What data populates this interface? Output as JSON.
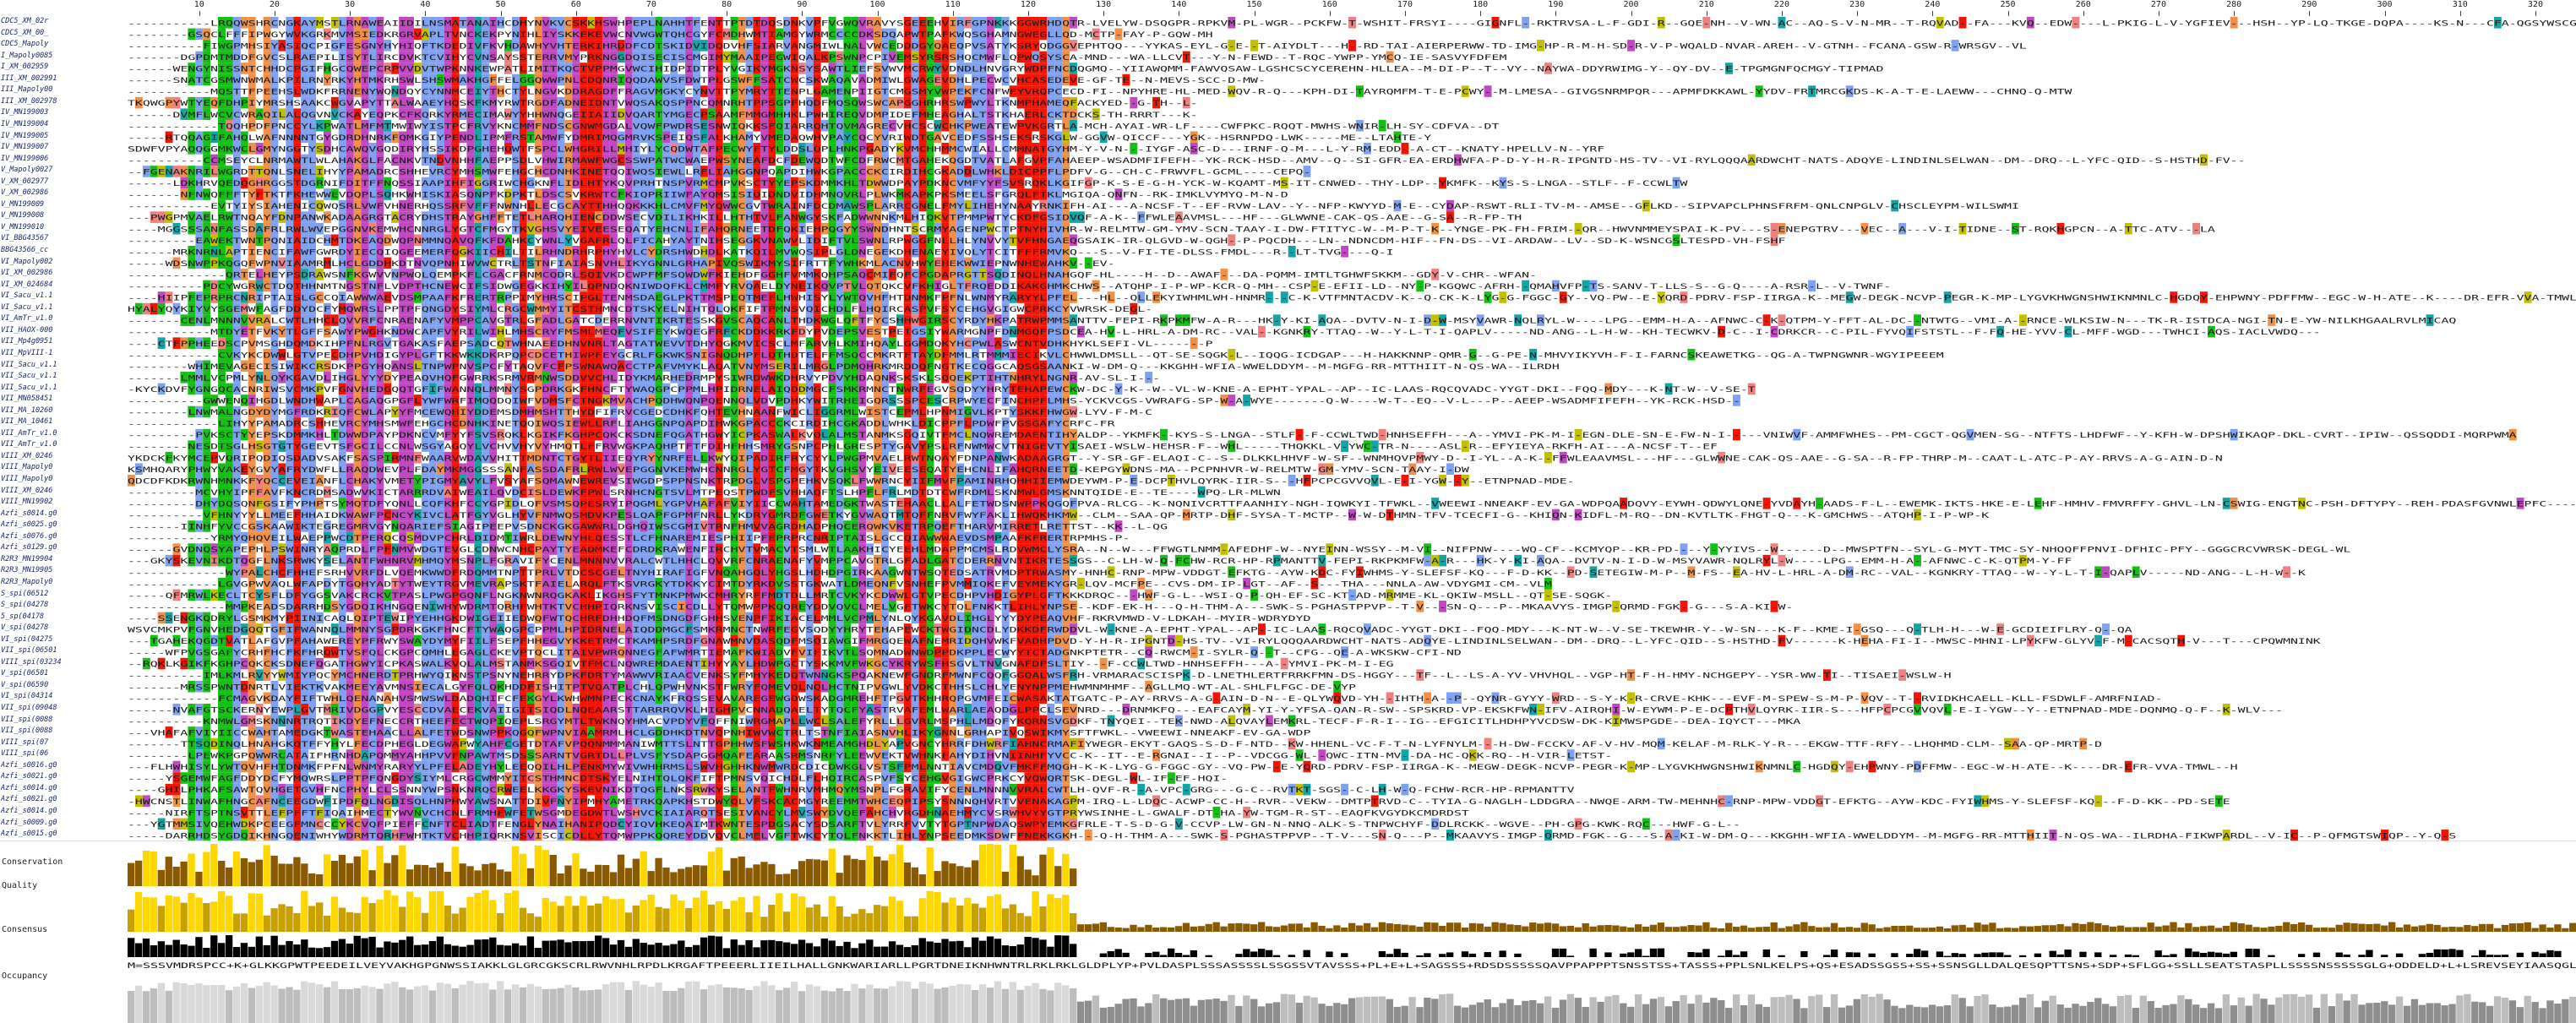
{
  "ruler": {
    "labels": [
      "10",
      "20",
      "30",
      "40",
      "50",
      "60",
      "70",
      "80",
      "90",
      "100",
      "110",
      "120",
      "130",
      "140",
      "150",
      "160",
      "170",
      "180",
      "190",
      "200",
      "210",
      "220",
      "230",
      "240",
      "250",
      "260",
      "270",
      "280",
      "290",
      "300",
      "310",
      "320"
    ]
  },
  "sequence_names": [
    "CDC5_XM_02r",
    "CDC5_XM_00_",
    "CDC5_Mapoly",
    "I_Mapoly0085",
    "I_XM_002959",
    "III_XM_002991",
    "III_Mapoly00",
    "III_XM_002978",
    "IV_MN199003",
    "IV_MN199004",
    "IV_MN199005",
    "IV_MN199007",
    "IV_MN199006",
    "V_Mapoly0027",
    "V_XM_002977",
    "V_XM_002986",
    "V_MN199009",
    "V_MN199008",
    "V_MN199010",
    "VI_BBG43567",
    "BBG43566_cc",
    "VI_Mapoly002",
    "VI_XM_002986",
    "VI_XM_024684",
    "VI_Sacu_v1.1",
    "VI_Sacu_v1.1",
    "VI_AmTr_v1.0",
    "VII_HAOX-000",
    "VII_Mp4g0951",
    "VII_MpVIII-1",
    "VII_Sacu_v1.1",
    "VII_Sacu_v1.1",
    "VII_Sacu_v1.1",
    "VII_MN058451",
    "VII_MA_10260",
    "VII_MA_10461",
    "VII_AmTr_v1.0",
    "VII_AmTr_v1.0",
    "VIII_XM_0246",
    "VIII_Mapoly0",
    "VIII_Mapoly0",
    "VIII_XM_0246",
    "VIII_MN19902",
    "Azfi_s0014.g0",
    "Azfi_s0025.g0",
    "Azfi_s0076.g0",
    "Azfi_s0129.g0",
    "R2R3_MN19904",
    "R2R3_MN19905",
    "R2R3_Mapoly0",
    "S_spi(06512",
    "S_spi(04278",
    "5_sp(04178",
    "V_spi(04278",
    "VI_spi(04275",
    "VII_spi(06501",
    "VIII_spi(03234",
    "V_spi(06501",
    "V_spi(06590",
    "VI_spi(04314",
    "VII_spi(09048",
    "VII_spi(0088",
    "VII_spi(0088",
    "VIII_spi(07",
    "VIII_spi(06",
    "Azfi_s0016.g0",
    "Azfi_s0021.g0",
    "Azfi_s0014.g0",
    "Azfi_s0021.g0",
    "Azfi_s0014.g0",
    "Azfi_s0009.g0",
    "Azfi_s0015.g0"
  ],
  "colors": {
    "hydrophobic": "#80a0f0",
    "positive": "#f01505",
    "negative": "#c048c0",
    "polar": "#15c015",
    "cysteine": "#f08080",
    "glycine": "#f09048",
    "proline": "#c0c000",
    "aromatic": "#15a4a4",
    "gap": "#ffffff",
    "conservation_high": "#ffd700",
    "conservation_low": "#8a5a00",
    "quality": "#c8a000",
    "consensus_bar": "#000000",
    "occupancy": "#bdbdbd"
  },
  "tracks": {
    "conservation_label": "Conservation",
    "quality_label": "Quality",
    "consensus_label": "Consensus",
    "occupancy_label": "Occupancy",
    "consensus_sequence": "M=SSSVMDRSPCC+K+GLKKGPWTPEEDEILVEYVAKHGPGNWSSIAKKLGLGRCGKSCRLRWVNHLRPDLKRGAFTPEEERLIIEILHALLGNKWARIARLLPGRTDNEIKNHWNTRLRKLRKLGLDPLYP+PVLDASPLSSSASSSSLSSGSSVTAVSSS+PL+E+L+SAGSSS+RDSDSSSSSQAVPPAPPPTSNSSTSS+TASSS+PPLSNLKELPS+QS+ESADSSGSS+SS+SSNSGLLDALQESQPTTSNS+SDP+SFLGG+SSLLSEATSTASPLLSSSSNSSSSSGLG+ODDELD+L+LSREVSEYIAASQGL"
  }
}
